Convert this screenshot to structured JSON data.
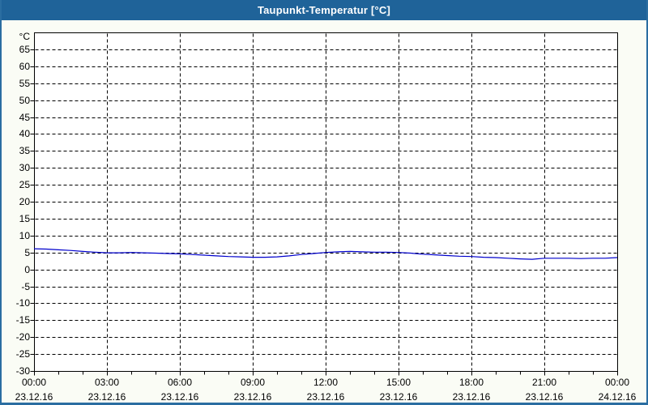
{
  "window": {
    "title": "Taupunkt-Temperatur [°C]",
    "colors": {
      "titlebar": "#1f6399",
      "border": "#2a6da1",
      "background": "#fafcf5",
      "plot_bg": "#ffffff",
      "grid": "#000000",
      "text": "#000000"
    }
  },
  "chart_data": {
    "type": "line",
    "title": "Taupunkt-Temperatur [°C]",
    "xlabel": "",
    "ylabel": "°C",
    "grid": "dashed",
    "legend": "none",
    "y_axis": {
      "min": -30,
      "max": 65,
      "step": 5,
      "plot_top": 70
    },
    "x_axis": {
      "hours_total": 24,
      "major_step": 3,
      "minor_step_hours": 1,
      "major_ticks": [
        {
          "hour": 0,
          "time": "00:00",
          "date": "23.12.16"
        },
        {
          "hour": 3,
          "time": "03:00",
          "date": "23.12.16"
        },
        {
          "hour": 6,
          "time": "06:00",
          "date": "23.12.16"
        },
        {
          "hour": 9,
          "time": "09:00",
          "date": "23.12.16"
        },
        {
          "hour": 12,
          "time": "12:00",
          "date": "23.12.16"
        },
        {
          "hour": 15,
          "time": "15:00",
          "date": "23.12.16"
        },
        {
          "hour": 18,
          "time": "18:00",
          "date": "23.12.16"
        },
        {
          "hour": 21,
          "time": "21:00",
          "date": "23.12.16"
        },
        {
          "hour": 24,
          "time": "00:00",
          "date": "24.12.16"
        }
      ]
    },
    "series": [
      {
        "name": "Taupunkt-Temperatur",
        "color": "#0000cc",
        "x_hours": [
          0,
          0.5,
          1,
          1.5,
          2,
          2.5,
          3,
          3.5,
          4,
          4.5,
          5,
          5.5,
          6,
          6.5,
          7,
          7.5,
          8,
          8.5,
          9,
          9.5,
          10,
          10.5,
          11,
          11.5,
          12,
          12.5,
          13,
          13.5,
          14,
          14.5,
          15,
          15.5,
          16,
          16.5,
          17,
          17.5,
          18,
          18.5,
          19,
          19.5,
          20,
          20.5,
          21,
          21.5,
          22,
          22.5,
          23,
          23.5,
          24
        ],
        "values": [
          6.1,
          6.0,
          5.8,
          5.6,
          5.3,
          5.1,
          4.9,
          4.9,
          5.0,
          4.9,
          4.8,
          4.7,
          4.6,
          4.4,
          4.2,
          4.0,
          3.8,
          3.7,
          3.6,
          3.6,
          3.7,
          4.0,
          4.4,
          4.7,
          5.0,
          5.2,
          5.3,
          5.2,
          5.1,
          5.1,
          5.0,
          4.8,
          4.5,
          4.3,
          4.1,
          3.9,
          3.8,
          3.6,
          3.5,
          3.3,
          3.1,
          3.0,
          3.3,
          3.3,
          3.3,
          3.2,
          3.3,
          3.3,
          3.5
        ]
      }
    ]
  }
}
